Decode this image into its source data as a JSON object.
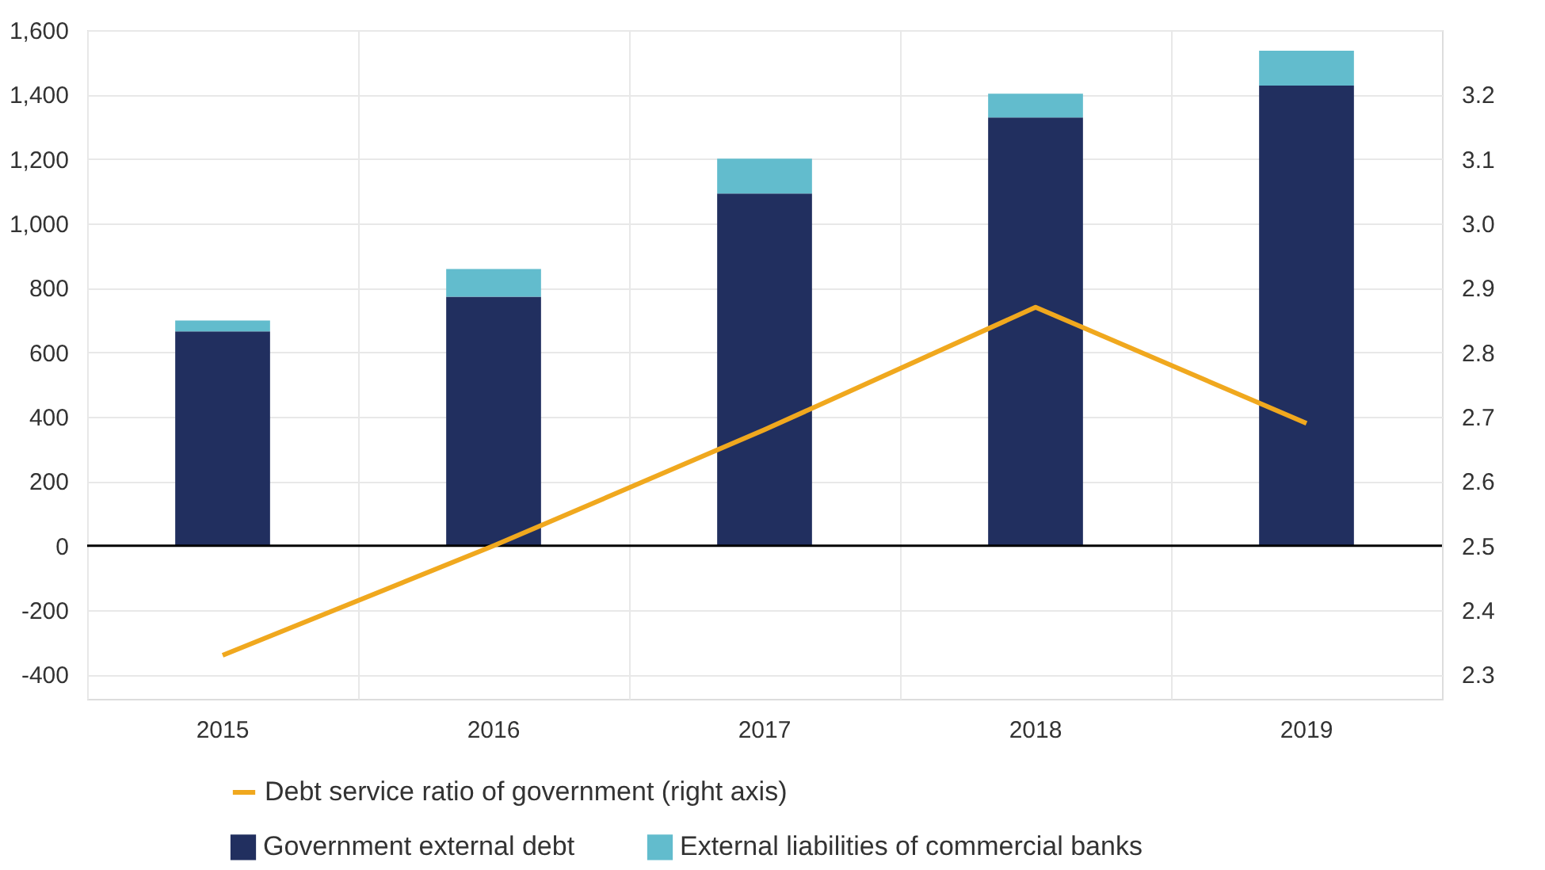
{
  "chart_data": {
    "type": "bar",
    "stacked": true,
    "categories": [
      "2015",
      "2016",
      "2017",
      "2018",
      "2019"
    ],
    "series": [
      {
        "name": "Government external debt",
        "color": "#212f5f",
        "values": [
          665,
          773,
          1093,
          1329,
          1428
        ]
      },
      {
        "name": "External liabilities of commercial banks",
        "color": "#62bccd",
        "values": [
          34,
          86,
          108,
          74,
          108
        ]
      },
      {
        "name": "Debt service ratio of government (right axis)",
        "type": "line",
        "axis": "y2",
        "color": "#f0a81e",
        "values": [
          2.33,
          2.5,
          2.68,
          2.87,
          2.69
        ]
      }
    ],
    "ylim": [
      -475,
      1600
    ],
    "yticks": [
      {
        "value": -400,
        "label": "-400"
      },
      {
        "value": -200,
        "label": "-200"
      },
      0,
      200,
      400,
      600,
      800,
      {
        "value": 1000,
        "label": "1,000"
      },
      {
        "value": 1200,
        "label": "1,200"
      },
      {
        "value": 1400,
        "label": "1,400"
      },
      {
        "value": 1600,
        "label": "1,600"
      }
    ],
    "y2lim": [
      2.2625,
      3.3
    ],
    "y2ticks": [
      2.3,
      2.4,
      2.5,
      2.6,
      2.7,
      2.8,
      2.9,
      {
        "value": 3.0,
        "label": "3.0"
      },
      3.1,
      3.2
    ],
    "ref_lines": [
      {
        "axis": "y",
        "value": 0,
        "color": "#000000"
      }
    ],
    "grid": true,
    "legend": "bottom"
  }
}
